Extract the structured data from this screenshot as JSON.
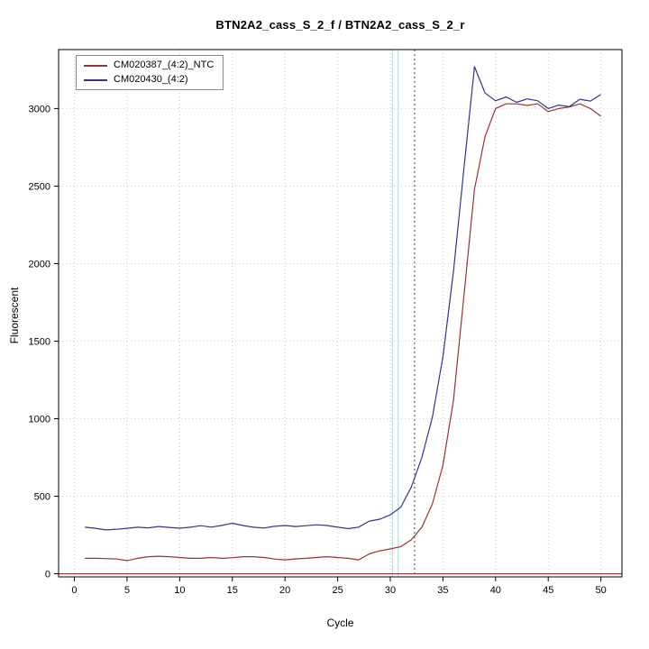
{
  "chart_data": {
    "type": "line",
    "title": "BTN2A2_cass_S_2_f / BTN2A2_cass_S_2_r",
    "xlabel": "Cycle",
    "ylabel": "Fluorescent",
    "xlim": [
      -1.5,
      52
    ],
    "ylim": [
      -20,
      3380
    ],
    "xticks": [
      0,
      5,
      10,
      15,
      20,
      25,
      30,
      35,
      40,
      45,
      50
    ],
    "yticks": [
      0,
      500,
      1000,
      1500,
      2000,
      2500,
      3000
    ],
    "grid": true,
    "grid_color": "#c8c8c8",
    "legend_position": "top-left",
    "x": [
      1,
      2,
      3,
      4,
      5,
      6,
      7,
      8,
      9,
      10,
      11,
      12,
      13,
      14,
      15,
      16,
      17,
      18,
      19,
      20,
      21,
      22,
      23,
      24,
      25,
      26,
      27,
      28,
      29,
      30,
      31,
      32,
      33,
      34,
      35,
      36,
      37,
      38,
      39,
      40,
      41,
      42,
      43,
      44,
      45,
      46,
      47,
      48,
      49,
      50
    ],
    "series": [
      {
        "name": "CM020387_(4:2)_NTC",
        "color": "#993333",
        "values": [
          100,
          100,
          98,
          95,
          85,
          100,
          110,
          113,
          110,
          105,
          100,
          100,
          105,
          100,
          104,
          110,
          110,
          105,
          95,
          90,
          96,
          100,
          105,
          110,
          105,
          100,
          90,
          128,
          148,
          160,
          175,
          220,
          300,
          450,
          700,
          1120,
          1800,
          2480,
          2820,
          3000,
          3030,
          3030,
          3020,
          3030,
          2980,
          3000,
          3010,
          3030,
          3000,
          2950
        ]
      },
      {
        "name": "CM020430_(4:2)",
        "color": "#33338f",
        "values": [
          300,
          293,
          283,
          287,
          293,
          300,
          296,
          305,
          299,
          294,
          300,
          310,
          301,
          312,
          326,
          311,
          300,
          295,
          306,
          311,
          305,
          310,
          316,
          311,
          300,
          291,
          301,
          340,
          352,
          380,
          430,
          560,
          750,
          1010,
          1400,
          1950,
          2620,
          3270,
          3100,
          3050,
          3075,
          3040,
          3062,
          3050,
          3000,
          3022,
          3012,
          3060,
          3048,
          3090
        ]
      }
    ],
    "baseline": {
      "y": 0,
      "color": "#993333"
    },
    "vlines": [
      {
        "x": 30.2,
        "color": "#8feef2",
        "style": "solid"
      },
      {
        "x": 30.75,
        "color": "#8feef2",
        "style": "solid"
      },
      {
        "x": 32.3,
        "color": "#5f5f78",
        "style": "dotted"
      }
    ],
    "tick_font_size": 11,
    "axis_color": "#000000"
  }
}
